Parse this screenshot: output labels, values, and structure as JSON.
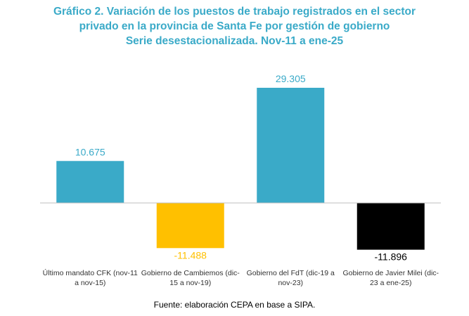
{
  "title_lines": [
    "Gráfico 2. Variación de los puestos de trabajo registrados en el sector",
    "privado en la provincia de Santa Fe por gestión de gobierno",
    "Serie desestacionalizada. Nov-11 a ene-25"
  ],
  "source": "Fuente: elaboración CEPA en base a SIPA.",
  "chart_data": {
    "type": "bar",
    "categories": [
      "Último mandato CFK (nov-11 a nov-15)",
      "Gobierno de Cambiemos (dic-15 a nov-19)",
      "Gobierno del FdT (dic-19 a nov-23)",
      "Gobierno de Javier Milei (dic-23 a ene-25)"
    ],
    "category_label_lines": [
      [
        "Último mandato CFK (nov-11",
        "a nov-15)"
      ],
      [
        "Gobierno de Cambiemos (dic-",
        "15 a nov-19)"
      ],
      [
        "Gobierno del FdT (dic-19 a",
        "nov-23)"
      ],
      [
        "Gobierno de Javier Milei (dic-",
        "23 a ene-25)"
      ]
    ],
    "values": [
      10675,
      -11488,
      29305,
      -11896
    ],
    "data_labels": [
      "10.675",
      "-11.488",
      "29.305",
      "-11.896"
    ],
    "colors": [
      "#3aaac8",
      "#ffc000",
      "#3aaac8",
      "#000000"
    ],
    "label_colors": [
      "#3aaac8",
      "#ffc000",
      "#3aaac8",
      "#000000"
    ],
    "grid": false
  }
}
